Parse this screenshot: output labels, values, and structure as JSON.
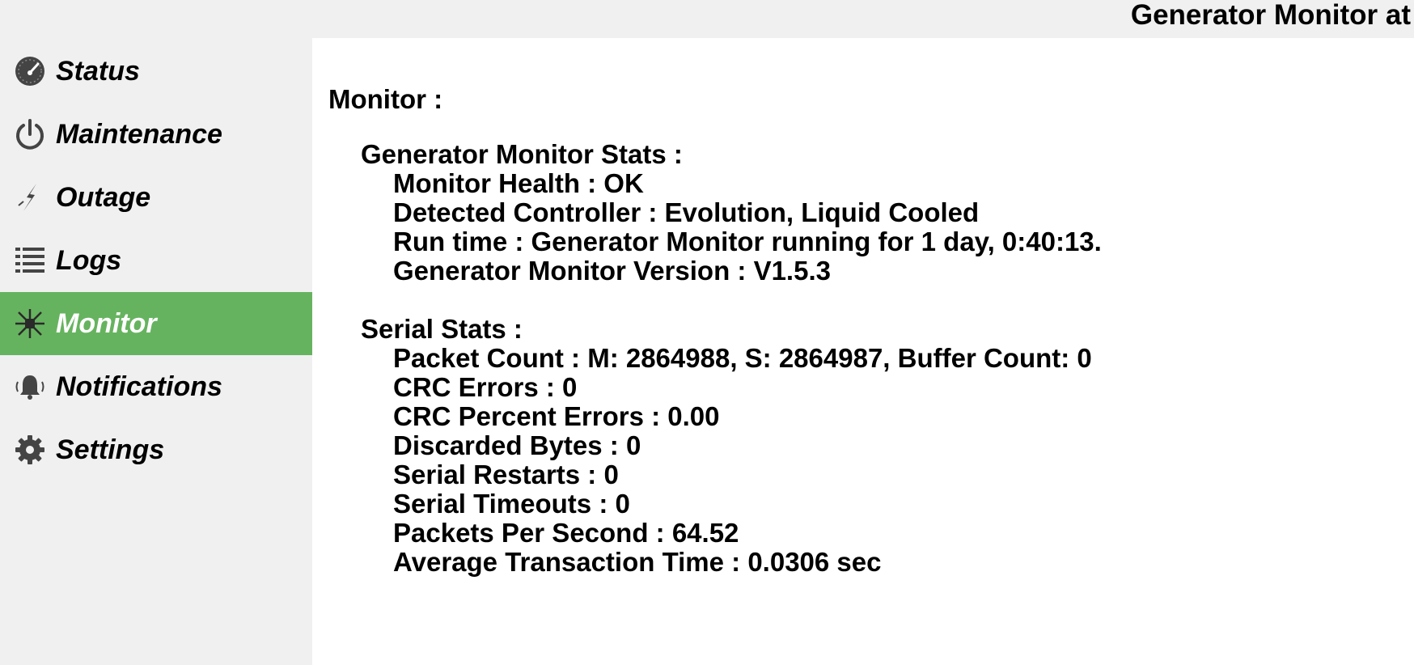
{
  "header": {
    "title": "Generator Monitor at"
  },
  "sidebar": {
    "items": [
      {
        "label": "Status",
        "icon": "dashboard-gauge-icon",
        "active": false
      },
      {
        "label": "Maintenance",
        "icon": "power-icon",
        "active": false
      },
      {
        "label": "Outage",
        "icon": "lightning-bolt-icon",
        "active": false
      },
      {
        "label": "Logs",
        "icon": "list-icon",
        "active": false
      },
      {
        "label": "Monitor",
        "icon": "network-hub-icon",
        "active": true
      },
      {
        "label": "Notifications",
        "icon": "bell-ringing-icon",
        "active": false
      },
      {
        "label": "Settings",
        "icon": "gear-icon",
        "active": false
      }
    ],
    "active_color": "#66b35f"
  },
  "main": {
    "title": "Monitor :",
    "monitor_stats": {
      "title": "Generator Monitor Stats :",
      "lines": [
        "Monitor Health : OK",
        "Detected Controller : Evolution, Liquid Cooled",
        "Run time : Generator Monitor running for 1 day, 0:40:13.",
        "Generator Monitor Version : V1.5.3"
      ]
    },
    "serial_stats": {
      "title": "Serial Stats :",
      "lines": [
        "Packet Count : M: 2864988, S: 2864987, Buffer Count: 0",
        "CRC Errors : 0",
        "CRC Percent Errors : 0.00",
        "Discarded Bytes : 0",
        "Serial Restarts : 0",
        "Serial Timeouts : 0",
        "Packets Per Second : 64.52",
        "Average Transaction Time : 0.0306 sec"
      ]
    }
  }
}
